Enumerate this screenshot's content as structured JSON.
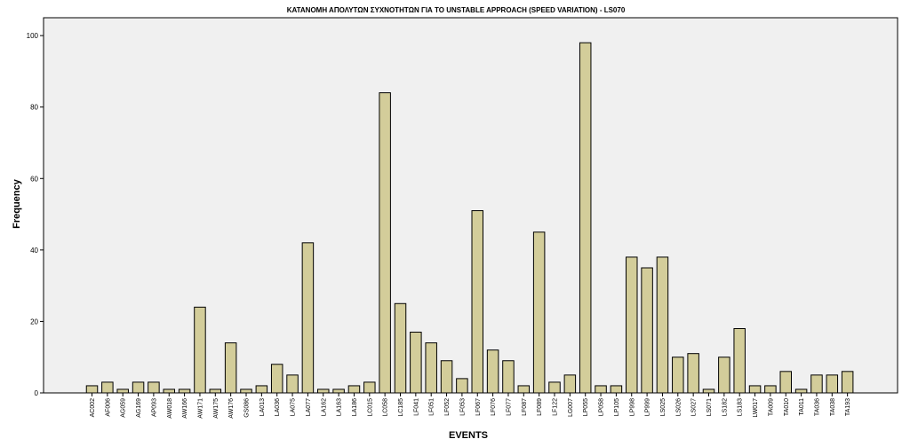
{
  "chart_data": {
    "type": "bar",
    "title": "ΚΑΤΑΝΟΜΗ ΑΠΟΛΥΤΩΝ ΣΥΧΝΟΤΗΤΩΝ ΓΙΑ ΤΟ UNSTABLE APPROACH (SPEED VARIATION) - LS070",
    "xlabel": "EVENTS",
    "ylabel": "Frequency",
    "ylim": [
      0,
      105
    ],
    "yticks": [
      0,
      20,
      40,
      60,
      80,
      100
    ],
    "grid": false,
    "legend": "none",
    "categories": [
      "AC002",
      "AF006",
      "AG059",
      "AG169",
      "AP093",
      "AW018",
      "AW166",
      "AW171",
      "AW175",
      "AW176",
      "GS086",
      "LA013",
      "LA036",
      "LA075",
      "LA077",
      "LA162",
      "LA163",
      "LA186",
      "LC015",
      "LC058",
      "LC185",
      "LF041",
      "LF051",
      "LF052",
      "LF053",
      "LF067",
      "LF076",
      "LF077",
      "LF087",
      "LF089",
      "LF122",
      "LG007",
      "LP055",
      "LP058",
      "LP105",
      "LP998",
      "LP999",
      "LS025",
      "LS026",
      "LS027",
      "LS071",
      "LS182",
      "LS183",
      "LW017",
      "TA009",
      "TA010",
      "TA011",
      "TA036",
      "TA038",
      "TA193"
    ],
    "values": [
      2,
      3,
      1,
      3,
      3,
      1,
      1,
      24,
      1,
      14,
      1,
      2,
      8,
      5,
      42,
      1,
      1,
      2,
      3,
      84,
      25,
      17,
      14,
      9,
      4,
      51,
      12,
      9,
      2,
      45,
      3,
      5,
      98,
      2,
      2,
      38,
      35,
      38,
      10,
      11,
      1,
      10,
      18,
      2,
      2,
      6,
      1,
      5,
      5,
      6
    ],
    "colors": {
      "bar_fill": "#d3cd9a",
      "bar_stroke": "#000000",
      "plot_background": "#f0f0f0",
      "page_background": "#ffffff"
    }
  }
}
